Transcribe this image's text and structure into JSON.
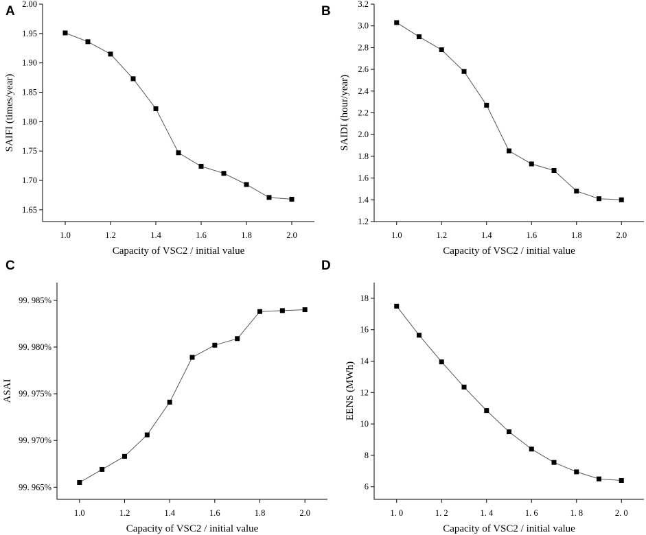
{
  "chart_data": [
    {
      "id": "A",
      "type": "line",
      "panel_label": "A",
      "xlabel": "Capacity of VSC2 / initial value",
      "ylabel": "SAIFI (times/year)",
      "xlim": [
        0.9,
        2.1
      ],
      "ylim": [
        1.63,
        2.0
      ],
      "x_ticks": [
        1.0,
        1.2,
        1.4,
        1.6,
        1.8,
        2.0
      ],
      "x_tick_labels": [
        "1.0",
        "1.2",
        "1.4",
        "1.6",
        "1.8",
        "2.0"
      ],
      "y_ticks": [
        1.65,
        1.7,
        1.75,
        1.8,
        1.85,
        1.9,
        1.95,
        2.0
      ],
      "y_tick_labels": [
        "1.65",
        "1.70",
        "1.75",
        "1.80",
        "1.85",
        "1.90",
        "1.95",
        "2.00"
      ],
      "x": [
        1.0,
        1.1,
        1.2,
        1.3,
        1.4,
        1.5,
        1.6,
        1.7,
        1.8,
        1.9,
        2.0
      ],
      "values": [
        1.951,
        1.936,
        1.915,
        1.873,
        1.822,
        1.747,
        1.724,
        1.712,
        1.693,
        1.671,
        1.668
      ]
    },
    {
      "id": "B",
      "type": "line",
      "panel_label": "B",
      "xlabel": "Capacity of VSC2 / initial value",
      "ylabel": "SAIDI (hour/year)",
      "xlim": [
        0.9,
        2.1
      ],
      "ylim": [
        1.2,
        3.2
      ],
      "x_ticks": [
        1.0,
        1.2,
        1.4,
        1.6,
        1.8,
        2.0
      ],
      "x_tick_labels": [
        "1.0",
        "1.2",
        "1.4",
        "1.6",
        "1.8",
        "2.0"
      ],
      "y_ticks": [
        1.2,
        1.4,
        1.6,
        1.8,
        2.0,
        2.2,
        2.4,
        2.6,
        2.8,
        3.0,
        3.2
      ],
      "y_tick_labels": [
        "1.2",
        "1.4",
        "1.6",
        "1.8",
        "2.0",
        "2.2",
        "2.4",
        "2.6",
        "2.8",
        "3.0",
        "3.2"
      ],
      "x": [
        1.0,
        1.1,
        1.2,
        1.3,
        1.4,
        1.5,
        1.6,
        1.7,
        1.8,
        1.9,
        2.0
      ],
      "values": [
        3.03,
        2.9,
        2.78,
        2.58,
        2.27,
        1.85,
        1.73,
        1.67,
        1.48,
        1.41,
        1.4
      ]
    },
    {
      "id": "C",
      "type": "line",
      "panel_label": "C",
      "xlabel": "Capacity of VSC2 / initial value",
      "ylabel": "ASAI",
      "xlim": [
        0.9,
        2.1
      ],
      "ylim": [
        99.9637,
        99.9869
      ],
      "x_ticks": [
        1.0,
        1.2,
        1.4,
        1.6,
        1.8,
        2.0
      ],
      "x_tick_labels": [
        "1.0",
        "1.2",
        "1.4",
        "1.6",
        "1.8",
        "2.0"
      ],
      "y_ticks": [
        99.965,
        99.97,
        99.975,
        99.98,
        99.985
      ],
      "y_tick_labels": [
        "99. 965%",
        "99. 970%",
        "99. 975%",
        "99. 980%",
        "99. 985%"
      ],
      "x": [
        1.0,
        1.1,
        1.2,
        1.3,
        1.4,
        1.5,
        1.6,
        1.7,
        1.8,
        1.9,
        2.0
      ],
      "values": [
        99.9655,
        99.9669,
        99.9683,
        99.9706,
        99.9741,
        99.9789,
        99.9802,
        99.9809,
        99.9838,
        99.9839,
        99.984
      ]
    },
    {
      "id": "D",
      "type": "line",
      "panel_label": "D",
      "xlabel": "Capacity of VSC2 / initial value",
      "ylabel": "EENS (MWh)",
      "xlim": [
        0.9,
        2.1
      ],
      "ylim": [
        5.2,
        19.0
      ],
      "x_ticks": [
        1.0,
        1.2,
        1.4,
        1.6,
        1.8,
        2.0
      ],
      "x_tick_labels": [
        "1. 0",
        "1. 2",
        "1. 4",
        "1. 6",
        "1. 8",
        "2. 0"
      ],
      "y_ticks": [
        6,
        8,
        10,
        12,
        14,
        16,
        18
      ],
      "y_tick_labels": [
        "6",
        "8",
        "10",
        "12",
        "14",
        "16",
        "18"
      ],
      "x": [
        1.0,
        1.1,
        1.2,
        1.3,
        1.4,
        1.5,
        1.6,
        1.7,
        1.8,
        1.9,
        2.0
      ],
      "values": [
        17.5,
        15.65,
        13.95,
        12.35,
        10.85,
        9.5,
        8.4,
        7.55,
        6.95,
        6.5,
        6.4
      ]
    }
  ]
}
